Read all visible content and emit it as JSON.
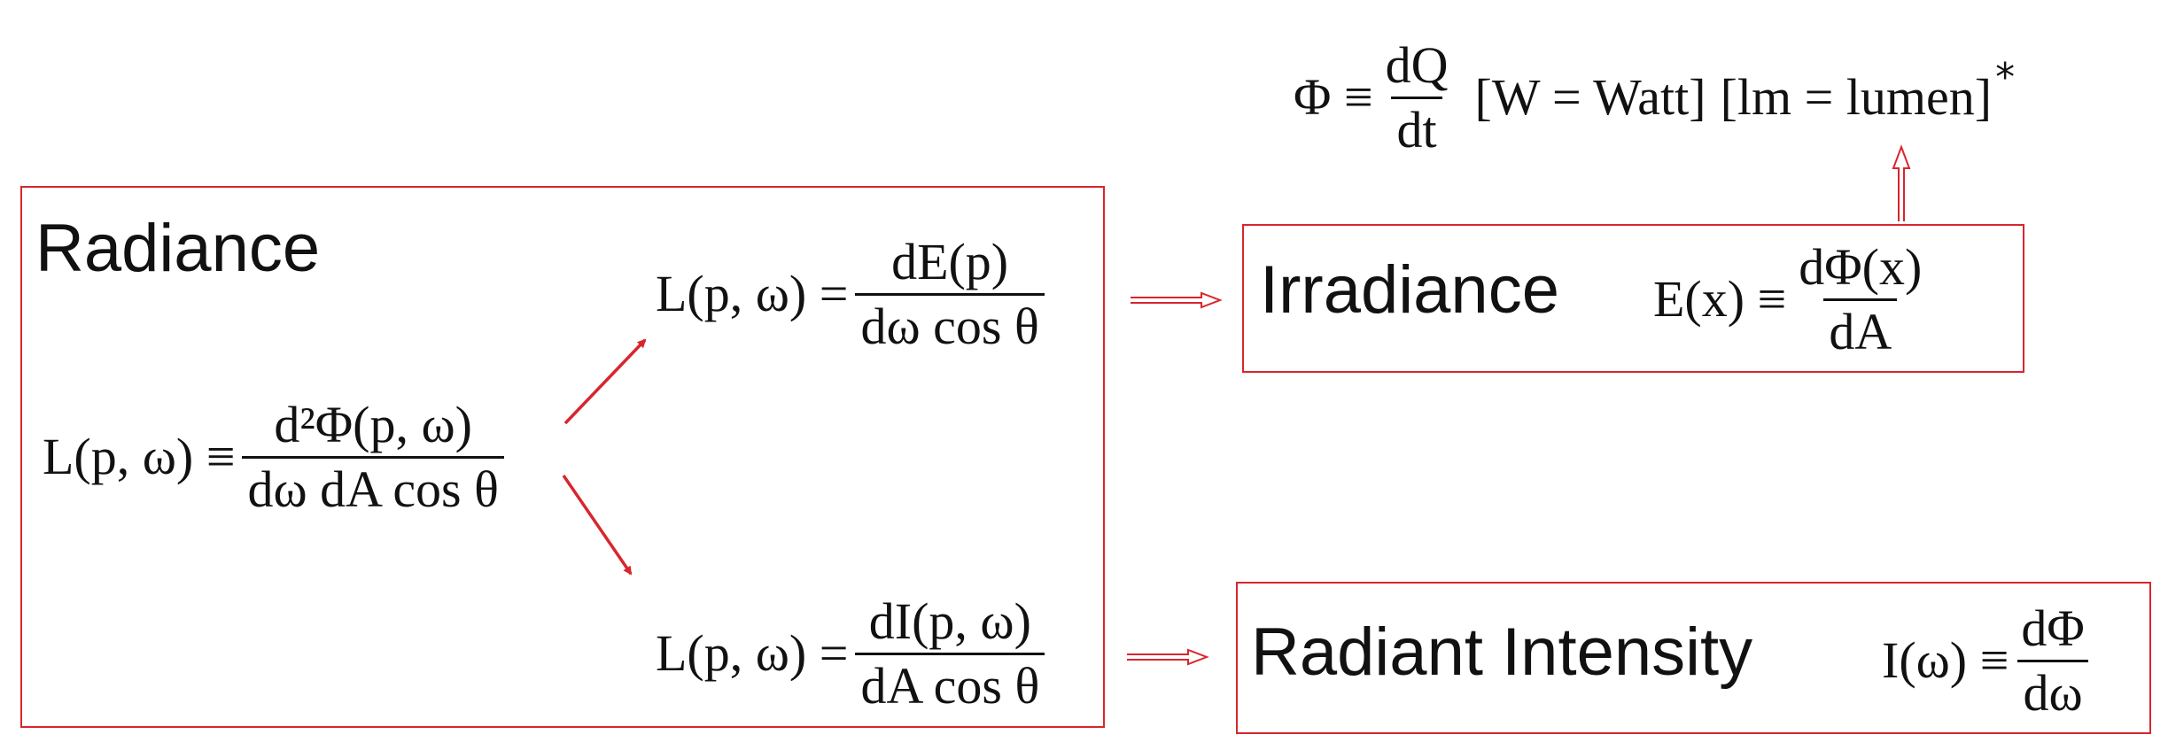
{
  "flux": {
    "lhs": "Φ ≡",
    "num": "dQ",
    "den": "dt",
    "unit1": "[W = Watt]",
    "unit2": "[lm = lumen]",
    "star": "*"
  },
  "radiance": {
    "title": "Radiance",
    "def_lhs": "L(p, ω) ≡",
    "def_num": "d²Φ(p, ω)",
    "def_den": "dω dA cos θ",
    "upper_lhs": "L(p, ω) =",
    "upper_num": "dE(p)",
    "upper_den": "dω cos θ",
    "lower_lhs": "L(p, ω) =",
    "lower_num": "dI(p, ω)",
    "lower_den": "dA cos θ"
  },
  "irradiance": {
    "title": "Irradiance",
    "lhs": "E(x) ≡",
    "num": "dΦ(x)",
    "den": "dA"
  },
  "intensity": {
    "title": "Radiant Intensity",
    "lhs": "I(ω) ≡",
    "num": "dΦ",
    "den": "dω"
  },
  "colors": {
    "accent": "#d8262e",
    "text": "#111111"
  }
}
